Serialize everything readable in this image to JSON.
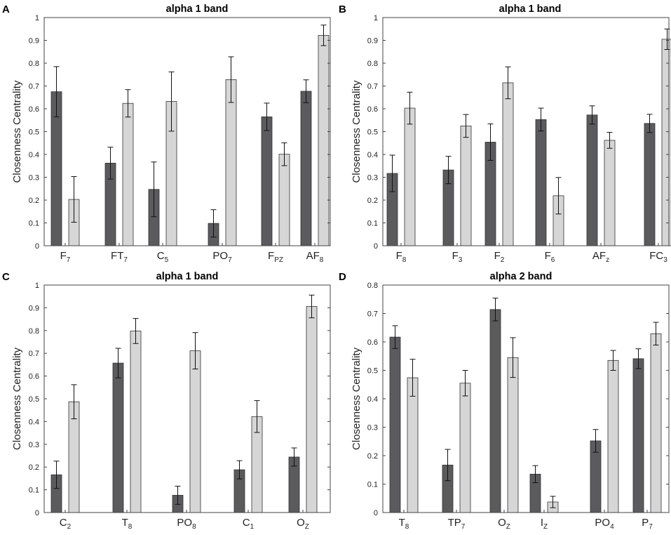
{
  "colors": {
    "dark_bar": "#5b5b5e",
    "light_bar": "#d6d6d6",
    "axis": "#444444"
  },
  "chart_data": [
    {
      "panel": "A",
      "type": "bar",
      "title": "alpha 1 band",
      "ylabel": "Closenness Centrality",
      "ylim": [
        0,
        1
      ],
      "yticks": [
        "0",
        "0.1",
        "0.2",
        "0.3",
        "0.4",
        "0.5",
        "0.6",
        "0.7",
        "0.8",
        "0.9",
        "1"
      ],
      "categories": [
        {
          "base": "F",
          "sub": "7"
        },
        {
          "base": "FT",
          "sub": "7"
        },
        {
          "base": "C",
          "sub": "5"
        },
        {
          "base": "PO",
          "sub": "7"
        },
        {
          "base": "F",
          "sub": "PZ"
        },
        {
          "base": "AF",
          "sub": "8"
        }
      ],
      "series": [
        {
          "name": "dark",
          "values": [
            0.675,
            0.362,
            0.247,
            0.098,
            0.565,
            0.677
          ],
          "errors": [
            0.11,
            0.07,
            0.12,
            0.06,
            0.06,
            0.05
          ]
        },
        {
          "name": "light",
          "values": [
            0.203,
            0.624,
            0.632,
            0.728,
            0.401,
            0.922
          ],
          "errors": [
            0.1,
            0.06,
            0.13,
            0.1,
            0.05,
            0.045
          ]
        }
      ]
    },
    {
      "panel": "B",
      "type": "bar",
      "title": "alpha 1 band",
      "ylabel": "Closenness Centrality",
      "ylim": [
        0,
        1
      ],
      "yticks": [
        "0",
        "0.1",
        "0.2",
        "0.3",
        "0.4",
        "0.5",
        "0.6",
        "0.7",
        "0.8",
        "0.9",
        "1"
      ],
      "categories": [
        {
          "base": "F",
          "sub": "8"
        },
        {
          "base": "F",
          "sub": "3"
        },
        {
          "base": "F",
          "sub": "2"
        },
        {
          "base": "F",
          "sub": "6"
        },
        {
          "base": "AF",
          "sub": "z"
        },
        {
          "base": "FC",
          "sub": "3"
        }
      ],
      "series": [
        {
          "name": "dark",
          "values": [
            0.317,
            0.332,
            0.454,
            0.553,
            0.573,
            0.536
          ],
          "errors": [
            0.08,
            0.06,
            0.08,
            0.05,
            0.04,
            0.04
          ]
        },
        {
          "name": "light",
          "values": [
            0.603,
            0.525,
            0.714,
            0.219,
            0.462,
            0.905
          ],
          "errors": [
            0.07,
            0.05,
            0.07,
            0.08,
            0.035,
            0.045
          ]
        }
      ]
    },
    {
      "panel": "C",
      "type": "bar",
      "title": "alpha 1 band",
      "ylabel": "Closenness Centrality",
      "ylim": [
        0,
        1
      ],
      "yticks": [
        "0",
        "0.1",
        "0.2",
        "0.3",
        "0.4",
        "0.5",
        "0.6",
        "0.7",
        "0.8",
        "0.9",
        "1"
      ],
      "categories": [
        {
          "base": "C",
          "sub": "2"
        },
        {
          "base": "T",
          "sub": "8"
        },
        {
          "base": "PO",
          "sub": "8"
        },
        {
          "base": "C",
          "sub": "1"
        },
        {
          "base": "O",
          "sub": "Z"
        }
      ],
      "series": [
        {
          "name": "dark",
          "values": [
            0.166,
            0.657,
            0.076,
            0.188,
            0.244
          ],
          "errors": [
            0.06,
            0.065,
            0.04,
            0.04,
            0.04
          ]
        },
        {
          "name": "light",
          "values": [
            0.487,
            0.798,
            0.711,
            0.422,
            0.906
          ],
          "errors": [
            0.075,
            0.055,
            0.08,
            0.07,
            0.05
          ]
        }
      ]
    },
    {
      "panel": "D",
      "type": "bar",
      "title": "alpha 2 band",
      "ylabel": "Closenness Centrality",
      "ylim": [
        0,
        0.8
      ],
      "yticks": [
        "0",
        "0.1",
        "0.2",
        "0.3",
        "0.4",
        "0.5",
        "0.6",
        "0.7",
        "0.8"
      ],
      "categories": [
        {
          "base": "T",
          "sub": "8"
        },
        {
          "base": "TP",
          "sub": "7"
        },
        {
          "base": "O",
          "sub": "Z"
        },
        {
          "base": "I",
          "sub": "Z"
        },
        {
          "base": "PO",
          "sub": "4"
        },
        {
          "base": "P",
          "sub": "7"
        }
      ],
      "series": [
        {
          "name": "dark",
          "values": [
            0.617,
            0.167,
            0.714,
            0.135,
            0.252,
            0.541
          ],
          "errors": [
            0.04,
            0.055,
            0.04,
            0.03,
            0.04,
            0.035
          ]
        },
        {
          "name": "light",
          "values": [
            0.474,
            0.455,
            0.545,
            0.037,
            0.535,
            0.629
          ],
          "errors": [
            0.065,
            0.045,
            0.07,
            0.02,
            0.035,
            0.04
          ]
        }
      ]
    }
  ]
}
